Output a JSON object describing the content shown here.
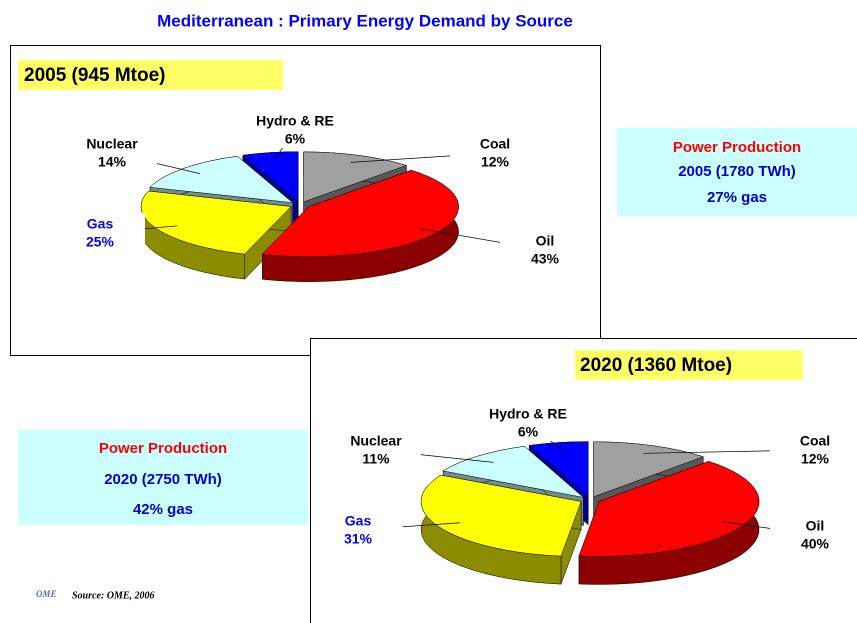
{
  "title": "Mediterranean : Primary Energy Demand by Source",
  "chart_data": [
    {
      "type": "pie",
      "title": "2005 (945 Mtoe)",
      "categories": [
        "Coal",
        "Oil",
        "Gas",
        "Nuclear",
        "Hydro & RE"
      ],
      "values": [
        12,
        43,
        25,
        14,
        6
      ],
      "value_labels": [
        "12%",
        "43%",
        "25%",
        "14%",
        "6%"
      ],
      "colors": [
        "#a0a0a0",
        "#ff0000",
        "#ffff00",
        "#ccffff",
        "#0000ff"
      ]
    },
    {
      "type": "pie",
      "title": "2020 (1360 Mtoe)",
      "categories": [
        "Coal",
        "Oil",
        "Gas",
        "Nuclear",
        "Hydro & RE"
      ],
      "values": [
        12,
        40,
        31,
        11,
        6
      ],
      "value_labels": [
        "12%",
        "40%",
        "31%",
        "11%",
        "6%"
      ],
      "colors": [
        "#a0a0a0",
        "#ff0000",
        "#ffff00",
        "#ccffff",
        "#0000ff"
      ]
    }
  ],
  "power_boxes": [
    {
      "heading": "Power Production",
      "line1": "2005 (1780 TWh)",
      "line2": "27% gas"
    },
    {
      "heading": "Power Production",
      "line1": "2020 (2750 TWh)",
      "line2": "42% gas"
    }
  ],
  "source": "Source: OME, 2006"
}
